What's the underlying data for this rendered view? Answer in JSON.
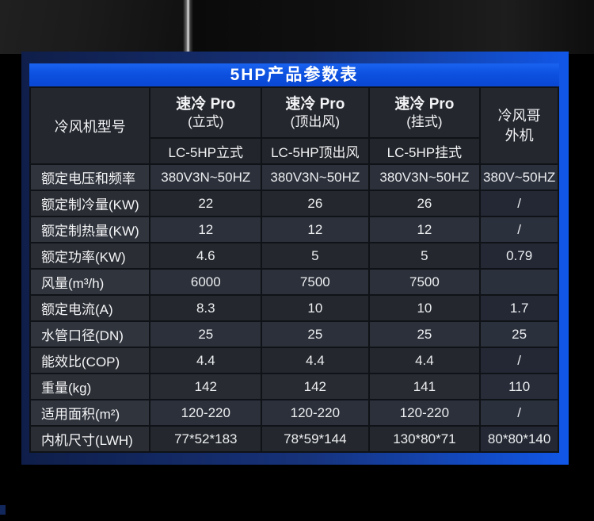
{
  "title": "5HP产品参数表",
  "table": {
    "model_header": "冷风机型号",
    "columns": [
      {
        "name": "速冷 Pro",
        "variant": "(立式)",
        "model": "LC-5HP立式"
      },
      {
        "name": "速冷 Pro",
        "variant": "(顶出风)",
        "model": "LC-5HP顶出风"
      },
      {
        "name": "速冷 Pro",
        "variant": "(挂式)",
        "model": "LC-5HP挂式"
      }
    ],
    "outdoor": {
      "line1": "冷风哥",
      "line2": "外机"
    },
    "rows": [
      {
        "label": "额定电压和频率",
        "values": [
          "380V3N~50HZ",
          "380V3N~50HZ",
          "380V3N~50HZ",
          "380V~50HZ"
        ]
      },
      {
        "label": "额定制冷量(KW)",
        "values": [
          "22",
          "26",
          "26",
          "/"
        ]
      },
      {
        "label": "额定制热量(KW)",
        "values": [
          "12",
          "12",
          "12",
          "/"
        ]
      },
      {
        "label": "额定功率(KW)",
        "values": [
          "4.6",
          "5",
          "5",
          "0.79"
        ]
      },
      {
        "label": "风量(m³/h)",
        "values": [
          "6000",
          "7500",
          "7500",
          ""
        ]
      },
      {
        "label": "额定电流(A)",
        "values": [
          "8.3",
          "10",
          "10",
          "1.7"
        ]
      },
      {
        "label": "水管口径(DN)",
        "values": [
          "25",
          "25",
          "25",
          "25"
        ]
      },
      {
        "label": "能效比(COP)",
        "values": [
          "4.4",
          "4.4",
          "4.4",
          "/"
        ]
      },
      {
        "label": "重量(kg)",
        "values": [
          "142",
          "142",
          "141",
          "110"
        ]
      },
      {
        "label": "适用面积(m²)",
        "values": [
          "120-220",
          "120-220",
          "120-220",
          "/"
        ]
      },
      {
        "label": "内机尺寸(LWH)",
        "values": [
          "77*52*183",
          "78*59*144",
          "130*80*71",
          "80*80*140"
        ]
      }
    ]
  },
  "colors": {
    "title_bar_blue": "#0d51e0",
    "frame_blue_bright": "#1157e8",
    "frame_navy_dark": "#0f1e49",
    "cell_dark": "#24272d",
    "cell_light": "#2c303a",
    "grid_line": "#0f1216",
    "text_white": "#f4f5f6"
  }
}
